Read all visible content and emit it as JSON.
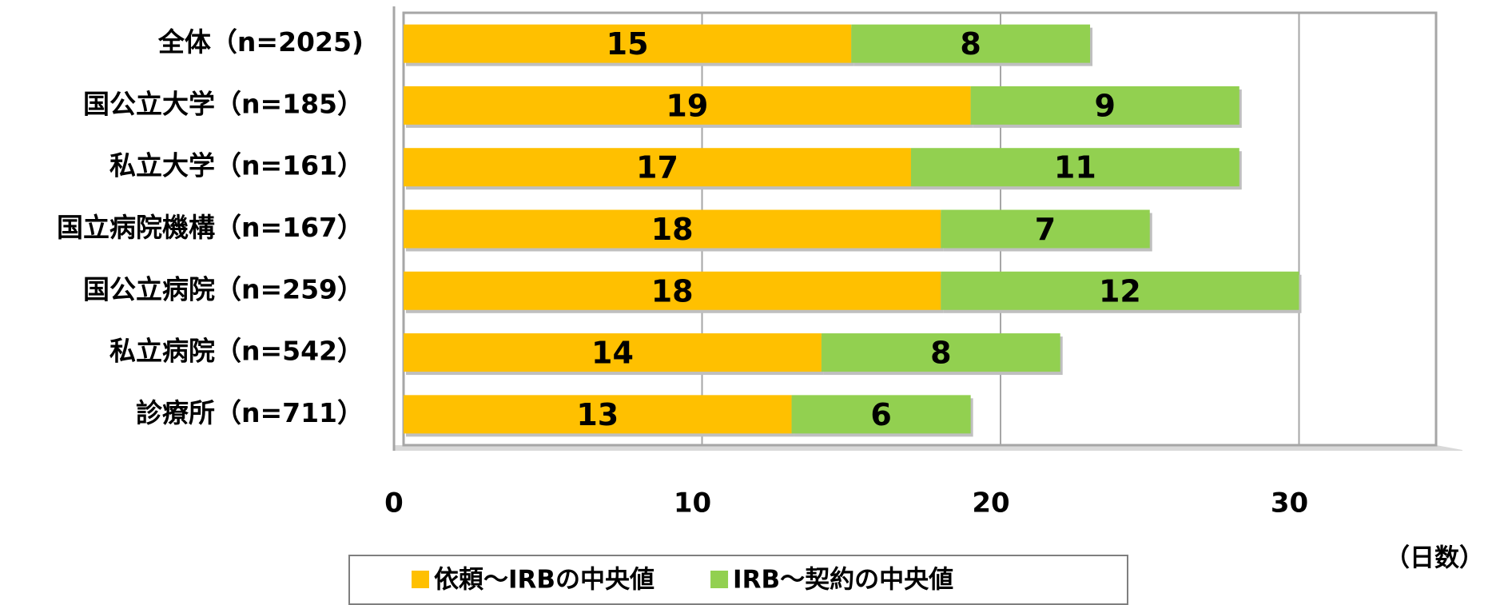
{
  "chart_data": {
    "type": "bar",
    "orientation": "horizontal",
    "stacked": true,
    "categories": [
      "全体（n=2025)",
      "国公立大学（n=185）",
      "私立大学（n=161）",
      "国立病院機構（n=167）",
      "国公立病院（n=259）",
      "私立病院（n=542）",
      "診療所（n=711）"
    ],
    "series": [
      {
        "name": "依頼～IRBの中央値",
        "color": "#FFC000",
        "values": [
          15,
          19,
          17,
          18,
          18,
          14,
          13
        ]
      },
      {
        "name": "IRB～契約の中央値",
        "color": "#92D050",
        "values": [
          8,
          9,
          11,
          7,
          12,
          8,
          6
        ]
      }
    ],
    "xlim": [
      0,
      35
    ],
    "xticks": [
      0,
      10,
      20,
      30
    ],
    "x_label": "（日数）",
    "grid": true,
    "legend": "bottom"
  }
}
